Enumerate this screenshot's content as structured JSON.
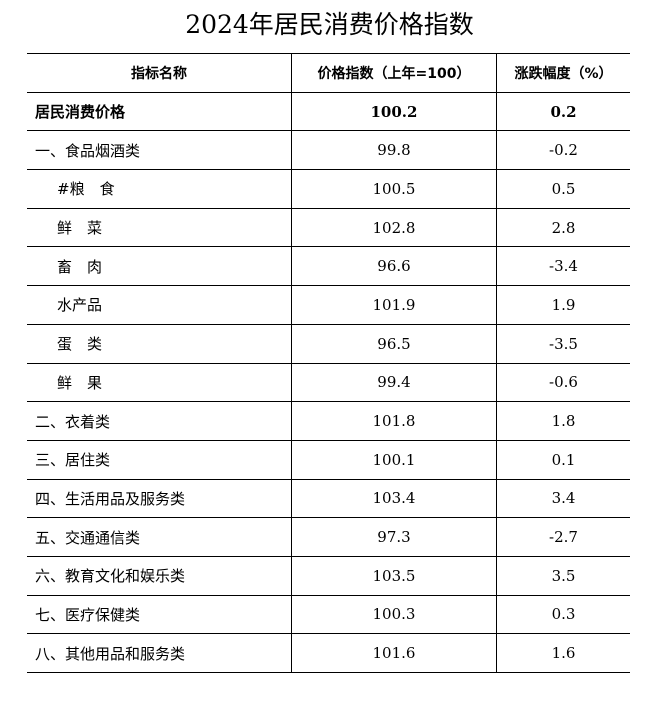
{
  "title": "2024年居民消费价格指数",
  "headers": [
    "指标名称",
    "价格指数（上年=100）",
    "涨跌幅度（%）"
  ],
  "rows": [
    {
      "name": "居民消费价格",
      "index": "100.2",
      "change": "0.2",
      "bold": true,
      "indent": false
    },
    {
      "name": "一、食品烟酒类",
      "index": "99.8",
      "change": "-0.2",
      "bold": false,
      "indent": false
    },
    {
      "name": "#粮　食",
      "index": "100.5",
      "change": "0.5",
      "bold": false,
      "indent": true
    },
    {
      "name": "鲜　菜",
      "index": "102.8",
      "change": "2.8",
      "bold": false,
      "indent": true
    },
    {
      "name": "畜　肉",
      "index": "96.6",
      "change": "-3.4",
      "bold": false,
      "indent": true
    },
    {
      "name": "水产品",
      "index": "101.9",
      "change": "1.9",
      "bold": false,
      "indent": true
    },
    {
      "name": "蛋　类",
      "index": "96.5",
      "change": "-3.5",
      "bold": false,
      "indent": true
    },
    {
      "name": "鲜　果",
      "index": "99.4",
      "change": "-0.6",
      "bold": false,
      "indent": true
    },
    {
      "name": "二、衣着类",
      "index": "101.8",
      "change": "1.8",
      "bold": false,
      "indent": false
    },
    {
      "name": "三、居住类",
      "index": "100.1",
      "change": "0.1",
      "bold": false,
      "indent": false
    },
    {
      "name": "四、生活用品及服务类",
      "index": "103.4",
      "change": "3.4",
      "bold": false,
      "indent": false
    },
    {
      "name": "五、交通通信类",
      "index": "97.3",
      "change": "-2.7",
      "bold": false,
      "indent": false
    },
    {
      "name": "六、教育文化和娱乐类",
      "index": "103.5",
      "change": "3.5",
      "bold": false,
      "indent": false
    },
    {
      "name": "七、医疗保健类",
      "index": "100.3",
      "change": "0.3",
      "bold": false,
      "indent": false
    },
    {
      "name": "八、其他用品和服务类",
      "index": "101.6",
      "change": "1.6",
      "bold": false,
      "indent": false
    }
  ]
}
